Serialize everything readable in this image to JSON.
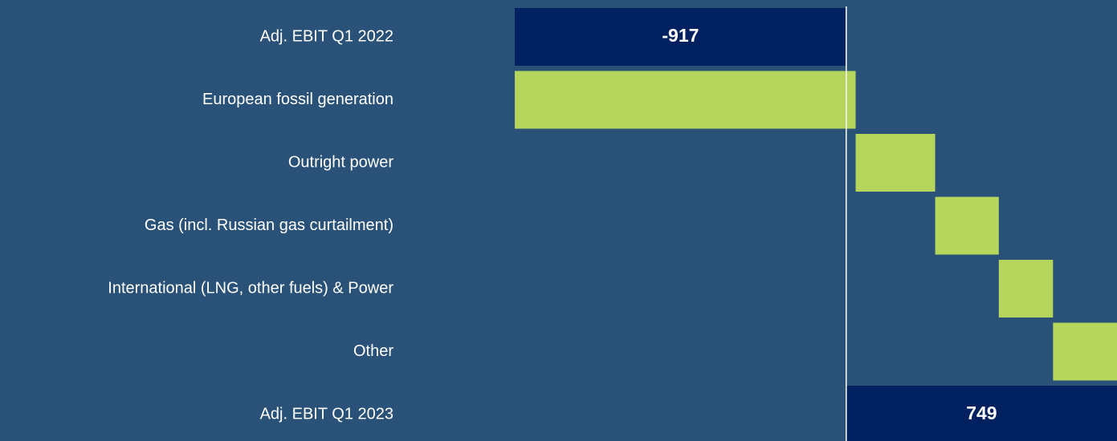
{
  "chart_data": {
    "type": "waterfall",
    "categories": [
      "Adj. EBIT Q1 2022",
      "European fossil generation",
      "Outright power",
      "Gas (incl. Russian gas curtailment)",
      "International (LNG, other fuels) & Power",
      "Other",
      "Adj. EBIT Q1 2023"
    ],
    "values": [
      -917,
      943,
      220,
      176,
      150,
      177,
      749
    ],
    "measure": [
      "absolute",
      "relative",
      "relative",
      "relative",
      "relative",
      "relative",
      "total"
    ],
    "total_color": "#00205f",
    "delta_color": "#b5d55d"
  }
}
